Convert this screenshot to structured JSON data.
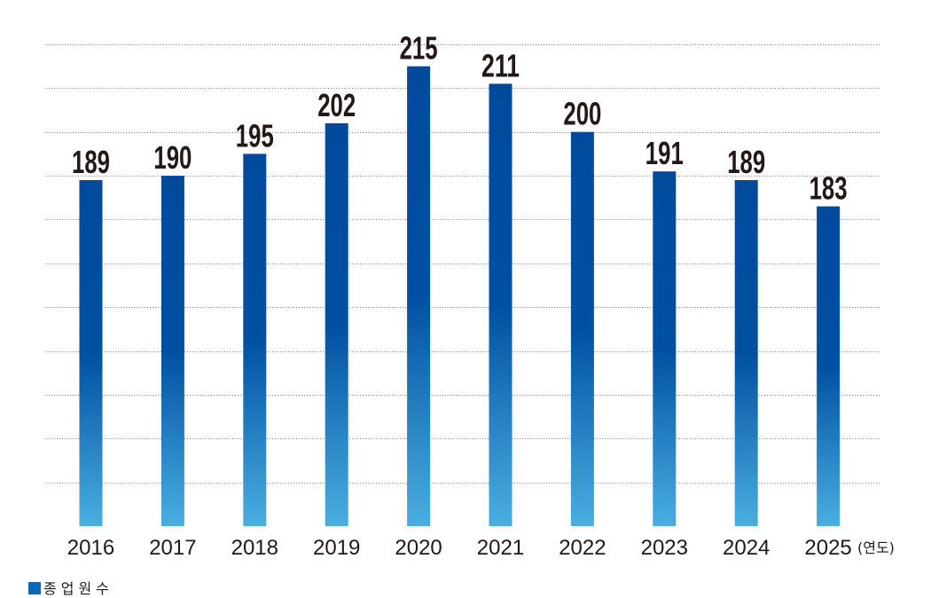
{
  "chart_data": {
    "type": "bar",
    "categories": [
      "2016",
      "2017",
      "2018",
      "2019",
      "2020",
      "2021",
      "2022",
      "2023",
      "2024",
      "2025"
    ],
    "series": [
      {
        "name": "종업원수",
        "values": [
          189,
          190,
          195,
          202,
          215,
          211,
          200,
          191,
          189,
          183
        ]
      }
    ],
    "xlabel": "(연도)",
    "ylim": [
      110,
      220
    ],
    "grid": true,
    "legend": "bottom-left"
  },
  "colors": {
    "bar_top": "#004a9c",
    "bar_mid": "#0050a2",
    "bar_bottom": "#4aaee0",
    "legend_swatch": "#0a69b7",
    "label_text": "#231815",
    "gridline": "#8f8f8f"
  }
}
